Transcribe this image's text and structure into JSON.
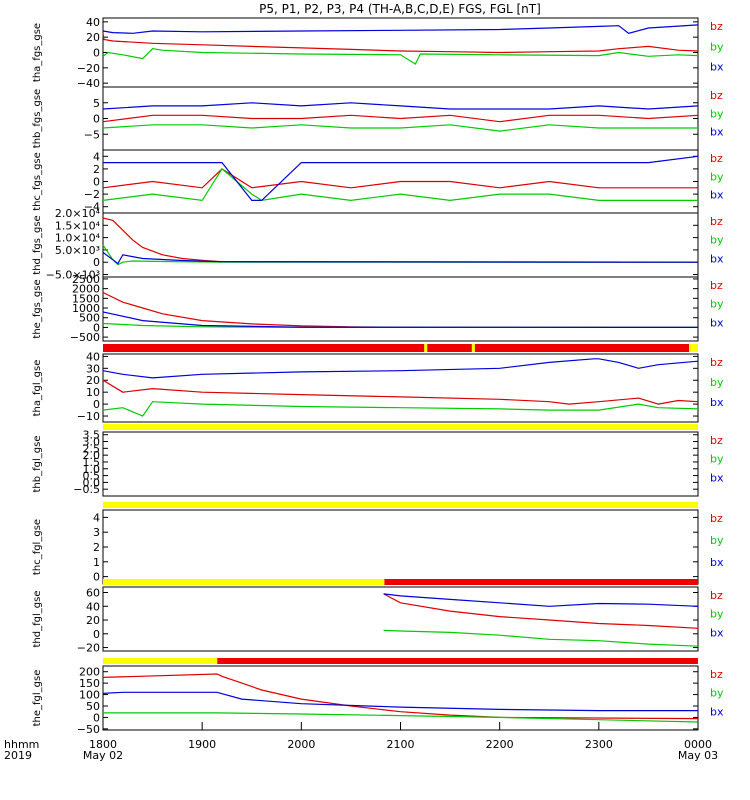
{
  "title": "P5, P1, P2, P3, P4 (TH-A,B,C,D,E) FGS, FGL [nT]",
  "colors": {
    "bz": "#dd0000",
    "by": "#00cc00",
    "bx": "#0000dd",
    "bar_red": "#ee0000",
    "bar_yellow": "#ffff00"
  },
  "legend": [
    "bz",
    "by",
    "bx"
  ],
  "x_axis": {
    "ticks": [
      "1800",
      "1900",
      "2000",
      "2100",
      "2200",
      "2300",
      "0000"
    ],
    "corner_label": "hhmm",
    "corner_year": "2019",
    "start_date": "May 02",
    "end_date": "May 03"
  },
  "chart_data": [
    {
      "type": "line",
      "ylabel": "tha_fgs_gse",
      "ylim": [
        -45,
        45
      ],
      "yticks": [
        "40",
        "20",
        "0",
        "−20",
        "−40"
      ],
      "series": [
        {
          "name": "bz",
          "x": [
            0,
            1,
            10,
            50,
            100,
            150,
            200,
            250,
            300,
            350,
            400,
            450,
            500,
            520,
            550,
            580,
            600
          ],
          "y": [
            25,
            17,
            15,
            12,
            10,
            8,
            6,
            4,
            2,
            1,
            0,
            1,
            2,
            5,
            8,
            3,
            2
          ]
        },
        {
          "name": "by",
          "x": [
            0,
            5,
            20,
            40,
            50,
            60,
            100,
            200,
            300,
            315,
            320,
            400,
            500,
            520,
            550,
            580,
            600
          ],
          "y": [
            -5,
            0,
            -3,
            -8,
            5,
            3,
            0,
            -2,
            -3,
            -15,
            -2,
            -3,
            -4,
            0,
            -5,
            -3,
            -4
          ]
        },
        {
          "name": "bx",
          "x": [
            0,
            10,
            30,
            50,
            100,
            200,
            300,
            400,
            450,
            500,
            520,
            530,
            550,
            600
          ],
          "y": [
            28,
            26,
            25,
            28,
            27,
            28,
            29,
            30,
            32,
            34,
            35,
            25,
            32,
            36
          ]
        }
      ]
    },
    {
      "type": "line",
      "ylabel": "thb_fgs_gse",
      "ylim": [
        -10,
        10
      ],
      "yticks": [
        "5",
        "0",
        "−5"
      ],
      "series": [
        {
          "name": "bz",
          "x": [
            0,
            50,
            100,
            150,
            200,
            250,
            300,
            350,
            400,
            450,
            500,
            550,
            600
          ],
          "y": [
            -1,
            1,
            1,
            0,
            0,
            1,
            0,
            1,
            -1,
            1,
            1,
            0,
            1
          ]
        },
        {
          "name": "by",
          "x": [
            0,
            50,
            100,
            150,
            200,
            250,
            300,
            350,
            400,
            450,
            500,
            550,
            600
          ],
          "y": [
            -3,
            -2,
            -2,
            -3,
            -2,
            -3,
            -3,
            -2,
            -4,
            -2,
            -3,
            -3,
            -3
          ]
        },
        {
          "name": "bx",
          "x": [
            0,
            50,
            100,
            150,
            200,
            250,
            300,
            350,
            400,
            450,
            500,
            550,
            600
          ],
          "y": [
            3,
            4,
            4,
            5,
            4,
            5,
            4,
            3,
            3,
            3,
            4,
            3,
            4
          ]
        }
      ]
    },
    {
      "type": "line",
      "ylabel": "thc_fgs_gse",
      "ylim": [
        -5,
        5
      ],
      "yticks": [
        "4",
        "2",
        "0",
        "−2",
        "−4"
      ],
      "series": [
        {
          "name": "bz",
          "x": [
            0,
            50,
            100,
            120,
            150,
            200,
            250,
            300,
            350,
            400,
            450,
            500,
            550,
            600
          ],
          "y": [
            -1,
            0,
            -1,
            2,
            -1,
            0,
            -1,
            0,
            0,
            -1,
            0,
            -1,
            -1,
            -1
          ]
        },
        {
          "name": "by",
          "x": [
            0,
            50,
            100,
            120,
            150,
            160,
            200,
            250,
            300,
            350,
            400,
            450,
            500,
            550,
            600
          ],
          "y": [
            -3,
            -2,
            -3,
            2,
            -2,
            -3,
            -2,
            -3,
            -2,
            -3,
            -2,
            -2,
            -3,
            -3,
            -3
          ]
        },
        {
          "name": "bx",
          "x": [
            0,
            50,
            100,
            120,
            150,
            160,
            200,
            250,
            300,
            350,
            400,
            450,
            500,
            550,
            600
          ],
          "y": [
            3,
            3,
            3,
            3,
            -3,
            -3,
            3,
            3,
            3,
            3,
            3,
            3,
            3,
            3,
            4
          ]
        }
      ]
    },
    {
      "type": "line",
      "ylabel": "thd_fgs_gse",
      "ylim": [
        -6000,
        20000
      ],
      "yticks": [
        "2.0×10⁴",
        "1.5×10⁴",
        "1.0×10⁴",
        "5.0×10³",
        "0",
        "−5.0×10³"
      ],
      "series": [
        {
          "name": "bz",
          "x": [
            0,
            10,
            20,
            30,
            40,
            60,
            80,
            100,
            120,
            600
          ],
          "y": [
            18000,
            17000,
            13000,
            9000,
            6000,
            3000,
            1500,
            800,
            200,
            0
          ]
        },
        {
          "name": "by",
          "x": [
            0,
            10,
            15,
            20,
            30,
            60,
            120,
            600
          ],
          "y": [
            7000,
            1000,
            -1000,
            0,
            500,
            300,
            0,
            0
          ]
        },
        {
          "name": "bx",
          "x": [
            0,
            10,
            15,
            20,
            40,
            80,
            120,
            600
          ],
          "y": [
            4000,
            1000,
            -500,
            3000,
            1500,
            700,
            200,
            0
          ]
        }
      ]
    },
    {
      "type": "line",
      "ylabel": "the_fgs_gse",
      "ylim": [
        -700,
        2600
      ],
      "yticks": [
        "2500",
        "2000",
        "1500",
        "1000",
        "500",
        "0",
        "−500"
      ],
      "series": [
        {
          "name": "bz",
          "x": [
            0,
            20,
            40,
            60,
            100,
            150,
            200,
            250,
            300,
            600
          ],
          "y": [
            1800,
            1300,
            1000,
            700,
            350,
            180,
            80,
            30,
            10,
            0
          ]
        },
        {
          "name": "by",
          "x": [
            0,
            40,
            100,
            200,
            600
          ],
          "y": [
            200,
            100,
            30,
            0,
            0
          ]
        },
        {
          "name": "bx",
          "x": [
            0,
            40,
            100,
            200,
            600
          ],
          "y": [
            800,
            350,
            100,
            10,
            0
          ]
        }
      ]
    },
    {
      "type": "line",
      "ylabel": "tha_fgl_gse",
      "ylim": [
        -15,
        42
      ],
      "yticks": [
        "40",
        "30",
        "20",
        "10",
        "0",
        "−10"
      ],
      "series": [
        {
          "name": "bz",
          "x": [
            0,
            20,
            50,
            100,
            200,
            300,
            400,
            450,
            470,
            500,
            540,
            560,
            580,
            600
          ],
          "y": [
            20,
            10,
            13,
            10,
            8,
            6,
            4,
            2,
            0,
            2,
            5,
            0,
            3,
            2
          ]
        },
        {
          "name": "by",
          "x": [
            0,
            20,
            40,
            50,
            100,
            200,
            300,
            400,
            450,
            500,
            540,
            560,
            600
          ],
          "y": [
            -5,
            -3,
            -10,
            2,
            0,
            -2,
            -3,
            -4,
            -5,
            -5,
            0,
            -3,
            -4
          ]
        },
        {
          "name": "bx",
          "x": [
            0,
            20,
            50,
            100,
            200,
            300,
            400,
            450,
            495,
            500,
            520,
            540,
            560,
            600
          ],
          "y": [
            28,
            25,
            22,
            25,
            27,
            28,
            30,
            35,
            38,
            38,
            35,
            30,
            33,
            36
          ]
        }
      ]
    },
    {
      "type": "line",
      "ylabel": "thb_fgl_gse",
      "ylim": [
        -1.0,
        3.7
      ],
      "yticks": [
        "3.5",
        "3.0",
        "2.5",
        "2.0",
        "1.5",
        "1.0",
        "0.5",
        "0.0",
        "−0.5"
      ],
      "series": []
    },
    {
      "type": "line",
      "ylabel": "thc_fgl_gse",
      "ylim": [
        -0.5,
        4.5
      ],
      "yticks": [
        "4",
        "3",
        "2",
        "1",
        "0"
      ],
      "series": []
    },
    {
      "type": "line",
      "ylabel": "thd_fgl_gse",
      "ylim": [
        -25,
        68
      ],
      "yticks": [
        "60",
        "40",
        "20",
        "0",
        "−20"
      ],
      "series": [
        {
          "name": "bz",
          "x": [
            283,
            300,
            350,
            400,
            450,
            500,
            550,
            600
          ],
          "y": [
            58,
            45,
            33,
            25,
            20,
            15,
            12,
            8
          ]
        },
        {
          "name": "by",
          "x": [
            283,
            300,
            350,
            400,
            450,
            500,
            550,
            600
          ],
          "y": [
            5,
            4,
            2,
            -2,
            -8,
            -10,
            -15,
            -18
          ]
        },
        {
          "name": "bx",
          "x": [
            283,
            300,
            350,
            400,
            450,
            500,
            550,
            600
          ],
          "y": [
            58,
            55,
            50,
            45,
            40,
            44,
            43,
            40
          ]
        }
      ]
    },
    {
      "type": "line",
      "ylabel": "the_fgl_gse",
      "ylim": [
        -55,
        225
      ],
      "yticks": [
        "200",
        "150",
        "100",
        "50",
        "0",
        "−50"
      ],
      "series": [
        {
          "name": "bz",
          "x": [
            0,
            115,
            120,
            140,
            160,
            200,
            250,
            300,
            350,
            400,
            600
          ],
          "y": [
            175,
            190,
            180,
            150,
            120,
            80,
            50,
            25,
            10,
            0,
            -5
          ]
        },
        {
          "name": "by",
          "x": [
            0,
            115,
            200,
            300,
            400,
            500,
            600
          ],
          "y": [
            20,
            20,
            15,
            8,
            0,
            -10,
            -20
          ]
        },
        {
          "name": "bx",
          "x": [
            0,
            20,
            115,
            140,
            200,
            300,
            400,
            500,
            600
          ],
          "y": [
            105,
            110,
            110,
            80,
            60,
            45,
            35,
            30,
            30
          ]
        }
      ]
    }
  ]
}
